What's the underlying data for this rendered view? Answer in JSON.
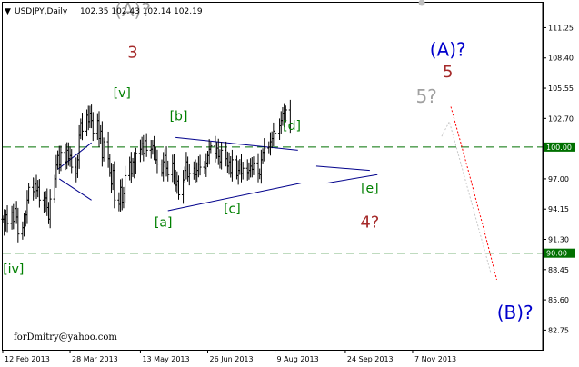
{
  "header": {
    "arrow": "▼",
    "symbol": "USDJPY,Daily",
    "ohlc": "102.35 102.43 102.14 102.19"
  },
  "footer": {
    "email": "forDmitry@yahoo.com"
  },
  "colors": {
    "candle": "#000000",
    "hline": "#007000",
    "wave_line": "#00008b",
    "forecast": "#ff0000",
    "label_green": "#008000",
    "label_red": "#a52a2a",
    "label_gray": "#a0a0a0",
    "label_blue": "#0000cc"
  },
  "chart_data": {
    "type": "candlestick",
    "title": "USDJPY,Daily",
    "ylim": [
      80.9,
      113.6
    ],
    "x_start": "2013-02-12",
    "x_end": "2014-01-31",
    "y_ticks": [
      "111.25",
      "108.40",
      "105.55",
      "102.70",
      "99.85",
      "97.00",
      "94.15",
      "91.30",
      "88.45",
      "85.60",
      "82.75"
    ],
    "y_tick_values": [
      111.25,
      108.4,
      105.55,
      102.7,
      99.85,
      97.0,
      94.15,
      91.3,
      88.45,
      85.6,
      82.75
    ],
    "x_ticks": [
      "12 Feb 2013",
      "28 Mar 2013",
      "13 May 2013",
      "26 Jun 2013",
      "9 Aug 2013",
      "24 Sep 2013",
      "7 Nov 2013"
    ],
    "x_tick_dates": [
      "2013-02-12",
      "2013-03-28",
      "2013-05-13",
      "2013-06-26",
      "2013-08-09",
      "2013-09-24",
      "2013-11-07"
    ],
    "horizontal_lines": [
      {
        "value": 100.0,
        "label": "100.00"
      },
      {
        "value": 90.0,
        "label": "90.00"
      }
    ],
    "closes": [
      93.2,
      92.5,
      93.6,
      92.8,
      93.8,
      93.0,
      94.2,
      93.4,
      91.8,
      92.4,
      92.9,
      93.6,
      95.0,
      96.2,
      95.8,
      96.5,
      95.9,
      96.2,
      95.0,
      94.5,
      95.2,
      94.3,
      93.2,
      95.1,
      97.0,
      98.3,
      99.2,
      98.3,
      99.5,
      98.6,
      99.7,
      98.9,
      99.2,
      98.1,
      97.5,
      98.8,
      101.1,
      102.3,
      101.5,
      103.0,
      102.4,
      103.2,
      102.5,
      101.3,
      102.5,
      100.8,
      101.5,
      99.0,
      100.5,
      98.9,
      97.6,
      96.5,
      97.8,
      95.0,
      94.6,
      96.2,
      94.8,
      95.6,
      97.3,
      98.6,
      97.5,
      98.6,
      97.9,
      99.4,
      99.8,
      100.3,
      99.4,
      100.6,
      99.7,
      99.8,
      100.1,
      99.6,
      98.8,
      98.4,
      97.6,
      98.6,
      99.2,
      98.0,
      97.4,
      98.5,
      97.2,
      96.4,
      96.8,
      95.5,
      96.9,
      97.8,
      98.6,
      97.2,
      97.5,
      98.0,
      97.4,
      97.8,
      98.4,
      98.1,
      98.0,
      98.5,
      99.2,
      99.8,
      100.1,
      99.4,
      99.9,
      99.1,
      98.6,
      99.7,
      98.9,
      98.2,
      98.6,
      97.6,
      98.8,
      97.3,
      97.8,
      98.4,
      97.5,
      98.0,
      97.6,
      97.8,
      98.2,
      97.9,
      98.5,
      97.5,
      97.4,
      98.8,
      99.5,
      99.9,
      100.0,
      100.5,
      100.8,
      101.5,
      101.3,
      102.0,
      102.5,
      103.2,
      102.7,
      103.5,
      102.2
    ],
    "forecast_path": [
      {
        "x": "2013-12-02",
        "y": 103.8
      },
      {
        "x": "2013-12-13",
        "y": 98.0
      },
      {
        "x": "2013-12-24",
        "y": 92.0
      },
      {
        "x": "2014-01-01",
        "y": 87.5
      }
    ],
    "forecast_alt_path": [
      {
        "x": "2013-11-26",
        "y": 101.0
      },
      {
        "x": "2013-12-01",
        "y": 102.4
      },
      {
        "x": "2013-12-28",
        "y": 88.2
      }
    ],
    "trend_lines": [
      {
        "from": {
          "x": "2013-03-20",
          "y": 97.9
        },
        "to": {
          "x": "2013-04-11",
          "y": 100.4
        }
      },
      {
        "from": {
          "x": "2013-03-21",
          "y": 97.0
        },
        "to": {
          "x": "2013-04-11",
          "y": 95.0
        }
      },
      {
        "from": {
          "x": "2013-06-05",
          "y": 100.9
        },
        "to": {
          "x": "2013-08-24",
          "y": 99.7
        }
      },
      {
        "from": {
          "x": "2013-05-31",
          "y": 94.0
        },
        "to": {
          "x": "2013-08-26",
          "y": 96.6
        }
      },
      {
        "from": {
          "x": "2013-09-05",
          "y": 98.2
        },
        "to": {
          "x": "2013-10-10",
          "y": 97.8
        }
      },
      {
        "from": {
          "x": "2013-09-12",
          "y": 96.6
        },
        "to": {
          "x": "2013-10-15",
          "y": 97.4
        }
      }
    ],
    "annotations": [
      {
        "text": "(A)?",
        "x": "2013-05-08",
        "y": 112.3,
        "color": "gray",
        "size": 20
      },
      {
        "text": "3",
        "x": "2013-05-08",
        "y": 108.4,
        "color": "red",
        "size": 18
      },
      {
        "text": "[v]",
        "x": "2013-05-01",
        "y": 104.7,
        "color": "green",
        "size": 14
      },
      {
        "text": "[b]",
        "x": "2013-06-07",
        "y": 102.5,
        "color": "green",
        "size": 14
      },
      {
        "text": "[d]",
        "x": "2013-08-20",
        "y": 101.6,
        "color": "green",
        "size": 14
      },
      {
        "text": "[a]",
        "x": "2013-05-28",
        "y": 92.5,
        "color": "green",
        "size": 14
      },
      {
        "text": "[c]",
        "x": "2013-07-12",
        "y": 93.8,
        "color": "green",
        "size": 14
      },
      {
        "text": "[e]",
        "x": "2013-10-10",
        "y": 95.7,
        "color": "green",
        "size": 14
      },
      {
        "text": "4?",
        "x": "2013-10-10",
        "y": 92.4,
        "color": "red",
        "size": 18
      },
      {
        "text": "5?",
        "x": "2013-11-16",
        "y": 104.2,
        "color": "gray",
        "size": 20
      },
      {
        "text": "5",
        "x": "2013-11-30",
        "y": 106.6,
        "color": "red",
        "size": 18
      },
      {
        "text": "(A)?",
        "x": "2013-11-30",
        "y": 108.6,
        "color": "blue",
        "size": 20
      },
      {
        "text": "[iv]",
        "x": "2013-02-19",
        "y": 88.1,
        "color": "green",
        "size": 14
      },
      {
        "text": "(B)?",
        "x": "2014-01-13",
        "y": 83.8,
        "color": "blue",
        "size": 20
      }
    ]
  }
}
